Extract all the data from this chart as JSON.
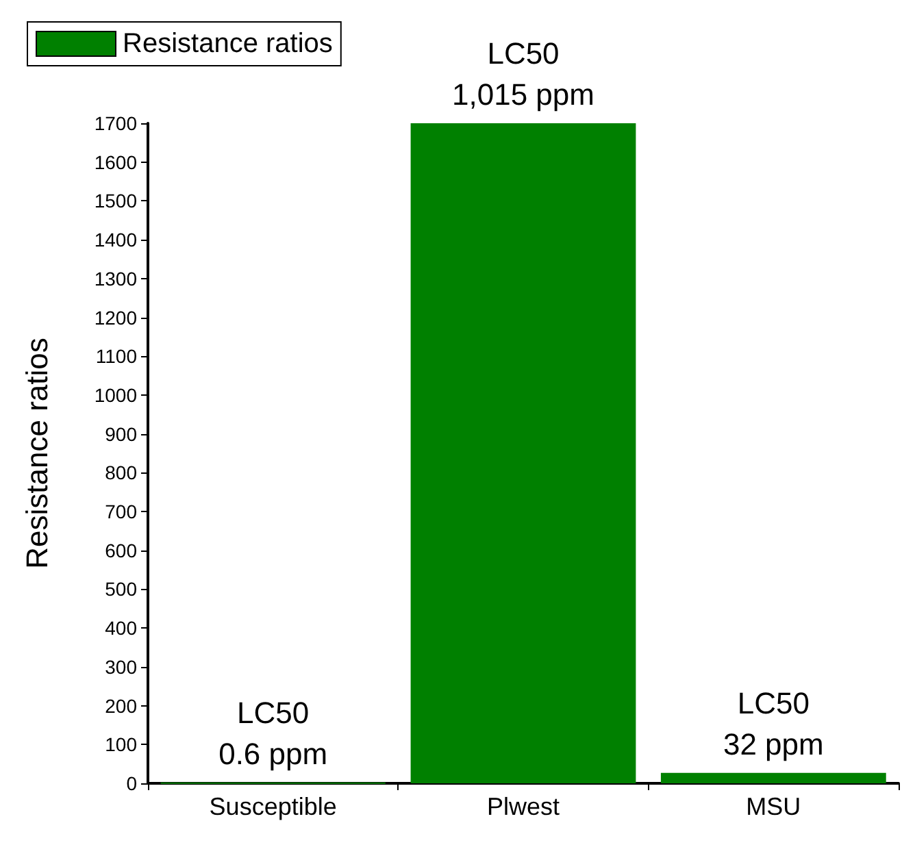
{
  "chart_data": {
    "type": "bar",
    "ylabel": "Resistance ratios",
    "categories": [
      "Susceptible",
      "Plwest",
      "MSU"
    ],
    "series": [
      {
        "name": "Resistance ratios",
        "color": "#008000",
        "values": [
          1,
          1700,
          27
        ]
      }
    ],
    "ylim": [
      0,
      1700
    ],
    "yticks": [
      0,
      100,
      200,
      300,
      400,
      500,
      600,
      700,
      800,
      900,
      1000,
      1100,
      1200,
      1300,
      1400,
      1500,
      1600,
      1700
    ],
    "annotations": [
      "LC50\n0.6 ppm",
      "LC50\n1,015 ppm",
      "LC50\n32 ppm"
    ],
    "legend": "top left",
    "grid": false
  }
}
